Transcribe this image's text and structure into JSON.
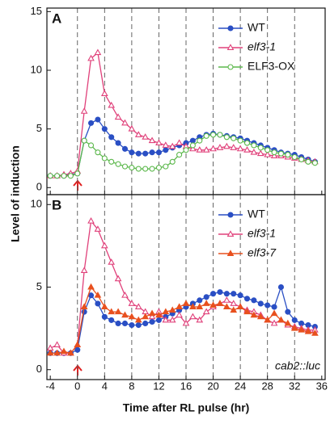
{
  "chart_data": [
    {
      "type": "line",
      "panel_label": "A",
      "ylabel": "Level of induction",
      "xlim": [
        -4.5,
        36.5
      ],
      "ylim": [
        -0.6,
        15.3
      ],
      "yticks": [
        0,
        5,
        10,
        15
      ],
      "x": [
        -4,
        -3,
        -2,
        -1,
        0,
        1,
        2,
        3,
        4,
        5,
        6,
        7,
        8,
        9,
        10,
        11,
        12,
        13,
        14,
        15,
        16,
        17,
        18,
        19,
        20,
        21,
        22,
        23,
        24,
        25,
        26,
        27,
        28,
        29,
        30,
        31,
        32,
        33,
        34,
        35
      ],
      "series": [
        {
          "name": "WT",
          "color": "#2a4fc4",
          "marker": "circle",
          "filled": true,
          "italic": false,
          "values": [
            1.0,
            1.0,
            1.0,
            1.1,
            1.2,
            4.0,
            5.5,
            5.8,
            5.0,
            4.3,
            3.8,
            3.3,
            3.0,
            2.9,
            2.9,
            3.0,
            3.0,
            3.2,
            3.4,
            3.6,
            3.8,
            4.0,
            4.3,
            4.5,
            4.6,
            4.5,
            4.4,
            4.3,
            4.2,
            4.0,
            3.8,
            3.6,
            3.4,
            3.2,
            3.0,
            2.9,
            2.8,
            2.6,
            2.4,
            2.2
          ]
        },
        {
          "name": "elf3-1",
          "color": "#e0407a",
          "marker": "triangle",
          "filled": false,
          "italic": true,
          "values": [
            1.0,
            1.0,
            1.1,
            1.2,
            1.4,
            6.5,
            11.0,
            11.5,
            8.0,
            7.0,
            6.0,
            5.5,
            5.0,
            4.5,
            4.3,
            4.0,
            3.8,
            3.6,
            3.5,
            3.8,
            3.5,
            3.3,
            3.2,
            3.2,
            3.3,
            3.4,
            3.5,
            3.4,
            3.3,
            3.2,
            3.0,
            2.9,
            2.8,
            2.7,
            2.7,
            2.6,
            2.5,
            2.4,
            2.3,
            2.2
          ]
        },
        {
          "name": "ELF3-OX",
          "color": "#5cb84c",
          "marker": "circle",
          "filled": false,
          "italic": false,
          "values": [
            1.0,
            1.0,
            1.0,
            1.0,
            1.2,
            4.0,
            3.6,
            3.0,
            2.5,
            2.2,
            2.0,
            1.8,
            1.7,
            1.6,
            1.6,
            1.6,
            1.7,
            1.8,
            2.2,
            2.8,
            3.2,
            3.6,
            4.0,
            4.4,
            4.5,
            4.5,
            4.3,
            4.2,
            4.0,
            3.8,
            3.6,
            3.4,
            3.2,
            3.0,
            2.9,
            2.8,
            2.6,
            2.4,
            2.2,
            2.1
          ]
        }
      ]
    },
    {
      "type": "line",
      "panel_label": "B",
      "xlabel": "Time after RL pulse (hr)",
      "annotation": "cab2::luc",
      "xlim": [
        -4.5,
        36.5
      ],
      "ylim": [
        -0.6,
        10.6
      ],
      "yticks": [
        0,
        5,
        10
      ],
      "xticks": [
        -4,
        0,
        4,
        8,
        12,
        16,
        20,
        24,
        28,
        32,
        36
      ],
      "x": [
        -4,
        -3,
        -2,
        -1,
        0,
        1,
        2,
        3,
        4,
        5,
        6,
        7,
        8,
        9,
        10,
        11,
        12,
        13,
        14,
        15,
        16,
        17,
        18,
        19,
        20,
        21,
        22,
        23,
        24,
        25,
        26,
        27,
        28,
        29,
        30,
        31,
        32,
        33,
        34,
        35
      ],
      "series": [
        {
          "name": "WT",
          "color": "#2a4fc4",
          "marker": "circle",
          "filled": true,
          "italic": false,
          "values": [
            1.0,
            1.0,
            1.0,
            1.0,
            1.2,
            3.5,
            4.5,
            4.0,
            3.2,
            3.0,
            2.8,
            2.8,
            2.7,
            2.7,
            2.8,
            2.9,
            3.0,
            3.2,
            3.4,
            3.6,
            3.8,
            4.0,
            4.2,
            4.4,
            4.6,
            4.7,
            4.6,
            4.6,
            4.5,
            4.3,
            4.2,
            4.0,
            3.9,
            3.8,
            5.0,
            3.5,
            3.0,
            2.8,
            2.7,
            2.6
          ]
        },
        {
          "name": "elf3-1",
          "color": "#e0407a",
          "marker": "triangle",
          "filled": false,
          "italic": true,
          "values": [
            1.3,
            1.5,
            1.0,
            1.0,
            1.5,
            6.0,
            9.0,
            8.5,
            7.5,
            6.5,
            5.5,
            4.5,
            4.0,
            3.8,
            3.5,
            3.2,
            3.5,
            3.0,
            3.0,
            3.3,
            2.8,
            3.2,
            3.0,
            3.5,
            3.8,
            4.0,
            4.2,
            4.0,
            3.8,
            3.6,
            3.5,
            3.3,
            3.0,
            2.8,
            3.0,
            2.7,
            2.6,
            2.5,
            2.4,
            2.4
          ]
        },
        {
          "name": "elf3-7",
          "color": "#e8501e",
          "marker": "triangle",
          "filled": true,
          "italic": true,
          "values": [
            1.0,
            1.0,
            1.1,
            1.0,
            1.5,
            3.8,
            5.0,
            4.5,
            3.8,
            3.5,
            3.5,
            3.3,
            3.2,
            3.0,
            3.2,
            3.4,
            3.3,
            3.5,
            3.6,
            3.8,
            4.0,
            3.8,
            3.8,
            4.0,
            3.9,
            4.0,
            3.8,
            3.6,
            3.8,
            3.5,
            3.3,
            3.2,
            3.0,
            3.4,
            3.0,
            2.8,
            2.5,
            2.4,
            2.3,
            2.2
          ]
        }
      ]
    }
  ]
}
